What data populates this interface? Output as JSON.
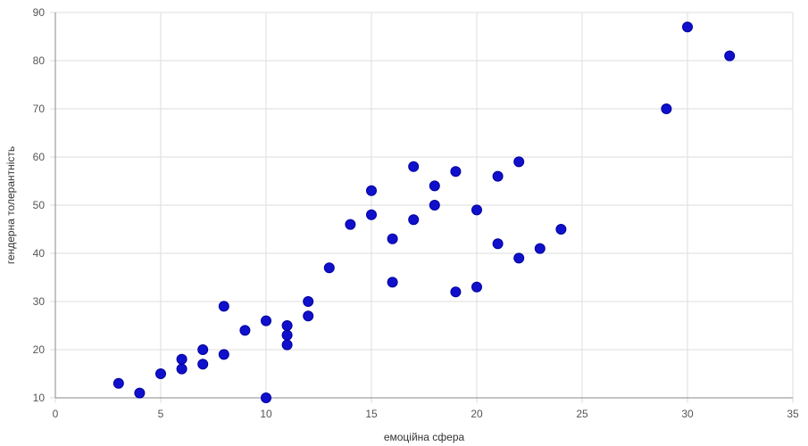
{
  "chart_data": {
    "type": "scatter",
    "title": "",
    "xlabel": "емоційна сфера",
    "ylabel": "гендерна толерантність",
    "xlim": [
      0,
      35
    ],
    "ylim": [
      10,
      90
    ],
    "x_ticks": [
      0,
      5,
      10,
      15,
      20,
      25,
      30,
      35
    ],
    "y_ticks": [
      10,
      20,
      30,
      40,
      50,
      60,
      70,
      80,
      90
    ],
    "grid": true,
    "legend": "none",
    "point_color": "#1010cc",
    "points": [
      {
        "x": 3,
        "y": 13
      },
      {
        "x": 4,
        "y": 11
      },
      {
        "x": 5,
        "y": 15
      },
      {
        "x": 6,
        "y": 16
      },
      {
        "x": 6,
        "y": 18
      },
      {
        "x": 7,
        "y": 17
      },
      {
        "x": 7,
        "y": 20
      },
      {
        "x": 8,
        "y": 19
      },
      {
        "x": 8,
        "y": 29
      },
      {
        "x": 9,
        "y": 24
      },
      {
        "x": 10,
        "y": 10
      },
      {
        "x": 10,
        "y": 26
      },
      {
        "x": 11,
        "y": 21
      },
      {
        "x": 11,
        "y": 23
      },
      {
        "x": 11,
        "y": 25
      },
      {
        "x": 12,
        "y": 27
      },
      {
        "x": 12,
        "y": 30
      },
      {
        "x": 13,
        "y": 37
      },
      {
        "x": 14,
        "y": 46
      },
      {
        "x": 15,
        "y": 48
      },
      {
        "x": 15,
        "y": 53
      },
      {
        "x": 16,
        "y": 34
      },
      {
        "x": 16,
        "y": 43
      },
      {
        "x": 17,
        "y": 47
      },
      {
        "x": 17,
        "y": 58
      },
      {
        "x": 18,
        "y": 50
      },
      {
        "x": 18,
        "y": 54
      },
      {
        "x": 19,
        "y": 32
      },
      {
        "x": 19,
        "y": 57
      },
      {
        "x": 20,
        "y": 33
      },
      {
        "x": 20,
        "y": 49
      },
      {
        "x": 21,
        "y": 42
      },
      {
        "x": 21,
        "y": 56
      },
      {
        "x": 22,
        "y": 39
      },
      {
        "x": 22,
        "y": 59
      },
      {
        "x": 23,
        "y": 41
      },
      {
        "x": 24,
        "y": 45
      },
      {
        "x": 29,
        "y": 70
      },
      {
        "x": 30,
        "y": 87
      },
      {
        "x": 32,
        "y": 81
      }
    ]
  }
}
